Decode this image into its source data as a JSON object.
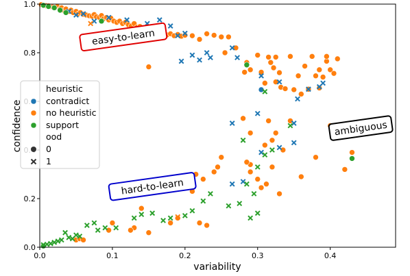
{
  "chart_data": {
    "type": "scatter",
    "title": "",
    "xlabel": "variability",
    "ylabel": "confidence",
    "xlim": [
      0.0,
      0.49
    ],
    "ylim": [
      0.0,
      1.0
    ],
    "xticks": [
      "0.0",
      "0.1",
      "0.2",
      "0.3",
      "0.4"
    ],
    "yticks": [
      "0.0",
      "0.2",
      "0.4",
      "0.6",
      "0.8",
      "1.0"
    ],
    "grid": false,
    "legend": {
      "placement": "center-left",
      "hue_title": "heuristic",
      "style_title": "ood",
      "hue_entries": [
        {
          "label": "contradict",
          "color": "#1f77b4"
        },
        {
          "label": "no heuristic",
          "color": "#ff7f0e"
        },
        {
          "label": "support",
          "color": "#2ca02c"
        }
      ],
      "style_entries": [
        {
          "label": "0",
          "marker": "circle"
        },
        {
          "label": "1",
          "marker": "x"
        }
      ]
    },
    "annotations": [
      {
        "text": "easy-to-learn",
        "x": 0.115,
        "y": 0.865,
        "rotation": -8,
        "edgecolor": "#e00000"
      },
      {
        "text": "ambiguous",
        "x": 0.442,
        "y": 0.49,
        "rotation": -8,
        "edgecolor": "#000000"
      },
      {
        "text": "hard-to-learn",
        "x": 0.155,
        "y": 0.25,
        "rotation": -8,
        "edgecolor": "#0000cc"
      }
    ],
    "series": [
      {
        "hue": "no heuristic",
        "ood": "0",
        "color": "#ff7f0e",
        "points": [
          [
            0.002,
            0.998
          ],
          [
            0.005,
            0.995
          ],
          [
            0.008,
            0.994
          ],
          [
            0.012,
            0.993
          ],
          [
            0.015,
            0.99
          ],
          [
            0.018,
            0.988
          ],
          [
            0.02,
            0.985
          ],
          [
            0.024,
            0.99
          ],
          [
            0.028,
            0.98
          ],
          [
            0.03,
            0.985
          ],
          [
            0.033,
            0.975
          ],
          [
            0.036,
            0.98
          ],
          [
            0.04,
            0.97
          ],
          [
            0.043,
            0.975
          ],
          [
            0.046,
            0.965
          ],
          [
            0.05,
            0.97
          ],
          [
            0.053,
            0.96
          ],
          [
            0.056,
            0.965
          ],
          [
            0.06,
            0.958
          ],
          [
            0.064,
            0.955
          ],
          [
            0.068,
            0.952
          ],
          [
            0.072,
            0.95
          ],
          [
            0.075,
            0.957
          ],
          [
            0.078,
            0.948
          ],
          [
            0.082,
            0.945
          ],
          [
            0.085,
            0.953
          ],
          [
            0.088,
            0.94
          ],
          [
            0.092,
            0.945
          ],
          [
            0.095,
            0.935
          ],
          [
            0.098,
            0.942
          ],
          [
            0.102,
            0.93
          ],
          [
            0.106,
            0.925
          ],
          [
            0.11,
            0.93
          ],
          [
            0.114,
            0.92
          ],
          [
            0.118,
            0.925
          ],
          [
            0.122,
            0.915
          ],
          [
            0.126,
            0.91
          ],
          [
            0.13,
            0.92
          ],
          [
            0.134,
            0.905
          ],
          [
            0.138,
            0.908
          ],
          [
            0.142,
            0.895
          ],
          [
            0.146,
            0.9
          ],
          [
            0.15,
            0.89
          ],
          [
            0.155,
            0.885
          ],
          [
            0.16,
            0.89
          ],
          [
            0.165,
            0.875
          ],
          [
            0.17,
            0.885
          ],
          [
            0.175,
            0.873
          ],
          [
            0.18,
            0.878
          ],
          [
            0.185,
            0.87
          ],
          [
            0.19,
            0.875
          ],
          [
            0.195,
            0.868
          ],
          [
            0.15,
            0.742
          ],
          [
            0.2,
            0.872
          ],
          [
            0.21,
            0.87
          ],
          [
            0.22,
            0.855
          ],
          [
            0.23,
            0.878
          ],
          [
            0.24,
            0.872
          ],
          [
            0.25,
            0.865
          ],
          [
            0.26,
            0.865
          ],
          [
            0.255,
            0.8
          ],
          [
            0.27,
            0.82
          ],
          [
            0.282,
            0.72
          ],
          [
            0.285,
            0.76
          ],
          [
            0.29,
            0.73
          ],
          [
            0.3,
            0.79
          ],
          [
            0.305,
            0.72
          ],
          [
            0.31,
            0.675
          ],
          [
            0.315,
            0.782
          ],
          [
            0.318,
            0.76
          ],
          [
            0.322,
            0.738
          ],
          [
            0.325,
            0.782
          ],
          [
            0.33,
            0.718
          ],
          [
            0.325,
            0.68
          ],
          [
            0.332,
            0.658
          ],
          [
            0.338,
            0.652
          ],
          [
            0.345,
            0.785
          ],
          [
            0.35,
            0.648
          ],
          [
            0.356,
            0.705
          ],
          [
            0.36,
            0.63
          ],
          [
            0.365,
            0.745
          ],
          [
            0.37,
            0.65
          ],
          [
            0.375,
            0.785
          ],
          [
            0.38,
            0.705
          ],
          [
            0.385,
            0.655
          ],
          [
            0.39,
            0.7
          ],
          [
            0.395,
            0.765
          ],
          [
            0.4,
            0.73
          ],
          [
            0.405,
            0.715
          ],
          [
            0.41,
            0.775
          ],
          [
            0.395,
            0.785
          ],
          [
            0.385,
            0.73
          ],
          [
            0.28,
            0.53
          ],
          [
            0.29,
            0.47
          ],
          [
            0.31,
            0.42
          ],
          [
            0.32,
            0.44
          ],
          [
            0.335,
            0.4
          ],
          [
            0.315,
            0.52
          ],
          [
            0.325,
            0.47
          ],
          [
            0.345,
            0.52
          ],
          [
            0.29,
            0.34
          ],
          [
            0.285,
            0.35
          ],
          [
            0.29,
            0.31
          ],
          [
            0.3,
            0.28
          ],
          [
            0.305,
            0.245
          ],
          [
            0.312,
            0.26
          ],
          [
            0.32,
            0.33
          ],
          [
            0.33,
            0.22
          ],
          [
            0.36,
            0.29
          ],
          [
            0.38,
            0.37
          ],
          [
            0.42,
            0.32
          ],
          [
            0.4,
            0.5
          ],
          [
            0.43,
            0.39
          ],
          [
            0.25,
            0.37
          ],
          [
            0.245,
            0.33
          ],
          [
            0.24,
            0.31
          ],
          [
            0.225,
            0.28
          ],
          [
            0.215,
            0.3
          ],
          [
            0.21,
            0.23
          ],
          [
            0.2,
            0.25
          ],
          [
            0.22,
            0.1
          ],
          [
            0.23,
            0.09
          ],
          [
            0.19,
            0.12
          ],
          [
            0.18,
            0.1
          ],
          [
            0.14,
            0.16
          ],
          [
            0.13,
            0.08
          ],
          [
            0.125,
            0.07
          ],
          [
            0.15,
            0.06
          ],
          [
            0.1,
            0.1
          ],
          [
            0.095,
            0.07
          ],
          [
            0.05,
            0.03
          ],
          [
            0.055,
            0.035
          ],
          [
            0.06,
            0.03
          ]
        ]
      },
      {
        "hue": "contradict",
        "ood": "1",
        "color": "#1f77b4",
        "points": [
          [
            0.04,
            0.97
          ],
          [
            0.05,
            0.955
          ],
          [
            0.06,
            0.96
          ],
          [
            0.075,
            0.93
          ],
          [
            0.095,
            0.945
          ],
          [
            0.12,
            0.935
          ],
          [
            0.148,
            0.92
          ],
          [
            0.165,
            0.935
          ],
          [
            0.18,
            0.91
          ],
          [
            0.2,
            0.88
          ],
          [
            0.19,
            0.87
          ],
          [
            0.195,
            0.765
          ],
          [
            0.21,
            0.79
          ],
          [
            0.22,
            0.77
          ],
          [
            0.23,
            0.8
          ],
          [
            0.235,
            0.78
          ],
          [
            0.265,
            0.82
          ],
          [
            0.272,
            0.78
          ],
          [
            0.305,
            0.705
          ],
          [
            0.33,
            0.68
          ],
          [
            0.355,
            0.61
          ],
          [
            0.385,
            0.66
          ],
          [
            0.39,
            0.675
          ],
          [
            0.37,
            0.65
          ],
          [
            0.265,
            0.51
          ],
          [
            0.3,
            0.55
          ],
          [
            0.305,
            0.39
          ],
          [
            0.33,
            0.41
          ],
          [
            0.35,
            0.51
          ],
          [
            0.35,
            0.43
          ],
          [
            0.28,
            0.27
          ],
          [
            0.265,
            0.26
          ]
        ]
      },
      {
        "hue": "contradict",
        "ood": "0",
        "color": "#1f77b4",
        "points": [
          [
            0.305,
            0.648
          ]
        ]
      },
      {
        "hue": "support",
        "ood": "0",
        "color": "#2ca02c",
        "points": [
          [
            0.005,
            0.995
          ],
          [
            0.012,
            0.99
          ],
          [
            0.02,
            0.985
          ],
          [
            0.028,
            0.975
          ],
          [
            0.036,
            0.965
          ],
          [
            0.085,
            0.93
          ],
          [
            0.285,
            0.75
          ],
          [
            0.43,
            0.365
          ],
          [
            0.005,
            0.005
          ]
        ]
      },
      {
        "hue": "support",
        "ood": "1",
        "color": "#2ca02c",
        "points": [
          [
            0.005,
            0.01
          ],
          [
            0.01,
            0.012
          ],
          [
            0.015,
            0.015
          ],
          [
            0.02,
            0.02
          ],
          [
            0.025,
            0.025
          ],
          [
            0.03,
            0.03
          ],
          [
            0.035,
            0.06
          ],
          [
            0.04,
            0.04
          ],
          [
            0.045,
            0.035
          ],
          [
            0.05,
            0.05
          ],
          [
            0.055,
            0.045
          ],
          [
            0.065,
            0.09
          ],
          [
            0.075,
            0.1
          ],
          [
            0.08,
            0.07
          ],
          [
            0.09,
            0.08
          ],
          [
            0.105,
            0.08
          ],
          [
            0.13,
            0.12
          ],
          [
            0.14,
            0.135
          ],
          [
            0.155,
            0.14
          ],
          [
            0.17,
            0.11
          ],
          [
            0.18,
            0.12
          ],
          [
            0.2,
            0.13
          ],
          [
            0.21,
            0.15
          ],
          [
            0.225,
            0.19
          ],
          [
            0.235,
            0.22
          ],
          [
            0.26,
            0.17
          ],
          [
            0.275,
            0.18
          ],
          [
            0.285,
            0.26
          ],
          [
            0.295,
            0.22
          ],
          [
            0.29,
            0.12
          ],
          [
            0.3,
            0.33
          ],
          [
            0.31,
            0.38
          ],
          [
            0.32,
            0.4
          ],
          [
            0.3,
            0.14
          ],
          [
            0.31,
            0.64
          ],
          [
            0.345,
            0.5
          ],
          [
            0.28,
            0.44
          ]
        ]
      },
      {
        "hue": "no heuristic",
        "ood": "1",
        "color": "#ff7f0e",
        "points": [
          [
            0.07,
            0.92
          ],
          [
            0.19,
            0.125
          ]
        ]
      }
    ]
  }
}
